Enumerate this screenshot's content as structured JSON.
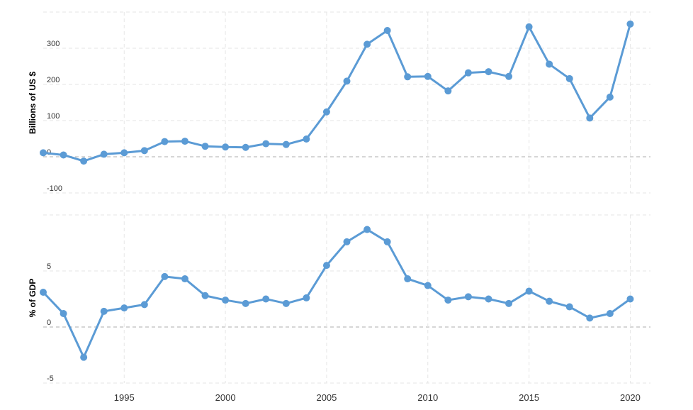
{
  "chart_data": [
    {
      "type": "line",
      "ylabel": "Billions of US $",
      "yticks": [
        -100,
        0,
        100,
        200,
        300
      ],
      "ylim": [
        -100,
        400
      ],
      "xlim": [
        1991,
        2021
      ],
      "grid": true,
      "color": "#5b9bd5",
      "x": [
        1991,
        1992,
        1993,
        1994,
        1995,
        1996,
        1997,
        1998,
        1999,
        2000,
        2001,
        2002,
        2003,
        2004,
        2005,
        2006,
        2007,
        2008,
        2009,
        2010,
        2011,
        2012,
        2013,
        2014,
        2015,
        2016,
        2017,
        2018,
        2019,
        2020
      ],
      "values": [
        11,
        5,
        -12,
        7,
        11,
        17,
        42,
        43,
        29,
        27,
        26,
        36,
        34,
        49,
        124,
        209,
        311,
        349,
        221,
        222,
        182,
        232,
        235,
        222,
        359,
        256,
        216,
        107,
        165,
        367
      ]
    },
    {
      "type": "line",
      "ylabel": "% of GDP",
      "yticks": [
        -5,
        0,
        5
      ],
      "ylim": [
        -5,
        10
      ],
      "xlim": [
        1991,
        2021
      ],
      "grid": true,
      "color": "#5b9bd5",
      "x": [
        1991,
        1992,
        1993,
        1994,
        1995,
        1996,
        1997,
        1998,
        1999,
        2000,
        2001,
        2002,
        2003,
        2004,
        2005,
        2006,
        2007,
        2008,
        2009,
        2010,
        2011,
        2012,
        2013,
        2014,
        2015,
        2016,
        2017,
        2018,
        2019,
        2020
      ],
      "values": [
        3.1,
        1.2,
        -2.7,
        1.4,
        1.7,
        2.0,
        4.5,
        4.3,
        2.8,
        2.4,
        2.1,
        2.5,
        2.1,
        2.6,
        5.5,
        7.6,
        8.7,
        7.6,
        4.3,
        3.7,
        2.4,
        2.7,
        2.5,
        2.1,
        3.2,
        2.3,
        1.8,
        0.8,
        1.2,
        2.5
      ]
    }
  ],
  "x_axis": {
    "ticks": [
      1995,
      2000,
      2005,
      2010,
      2015,
      2020
    ]
  }
}
